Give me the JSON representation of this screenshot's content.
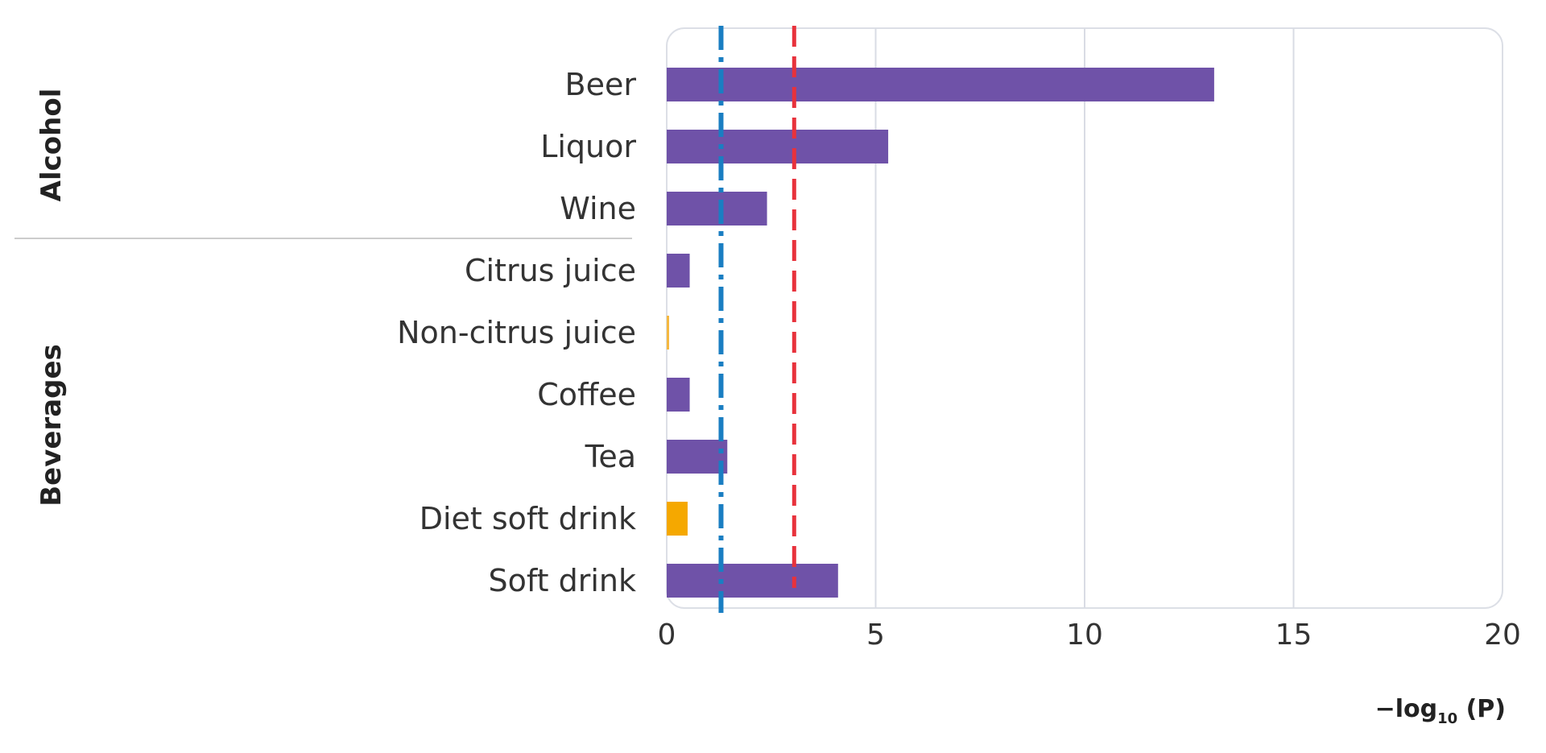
{
  "chart_data": {
    "type": "bar",
    "orientation": "horizontal",
    "categories": [
      "Beer",
      "Liquor",
      "Wine",
      "Citrus juice",
      "Non-citrus juice",
      "Coffee",
      "Tea",
      "Diet soft drink",
      "Soft drink"
    ],
    "values": [
      13.1,
      5.3,
      2.4,
      0.55,
      0.05,
      0.55,
      1.45,
      0.5,
      4.1
    ],
    "bar_colors": [
      "#6f52a8",
      "#6f52a8",
      "#6f52a8",
      "#6f52a8",
      "#f5b840",
      "#6f52a8",
      "#6f52a8",
      "#f5a800",
      "#6f52a8"
    ],
    "groups": [
      {
        "name": "Alcohol",
        "categories": [
          "Beer",
          "Liquor",
          "Wine"
        ]
      },
      {
        "name": "Beverages",
        "categories": [
          "Citrus juice",
          "Non-citrus juice",
          "Coffee",
          "Tea",
          "Diet soft drink",
          "Soft drink"
        ]
      }
    ],
    "xlim": [
      0,
      20
    ],
    "xticks": [
      0,
      5,
      10,
      15,
      20
    ],
    "xlabel_main": "−log",
    "xlabel_sub": "10",
    "xlabel_tail": " (P)",
    "reference_lines": [
      {
        "x": 1.3,
        "style": "dash-dot",
        "color": "#1a7ec2"
      },
      {
        "x": 3.05,
        "style": "dashed",
        "color": "#e8323c"
      }
    ],
    "grid": true,
    "colors": {
      "purple": "#6f52a8",
      "orange": "#f5a800",
      "grid": "#d9dce4"
    }
  }
}
